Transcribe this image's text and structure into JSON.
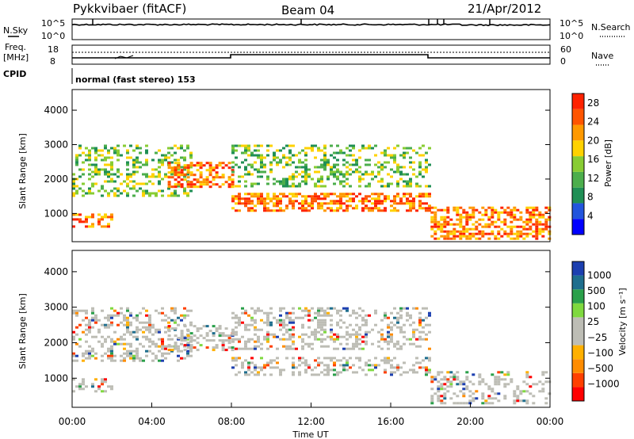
{
  "header": {
    "station": "Pykkvibaer (fitACF)",
    "beam": "Beam 04",
    "date": "21/Apr/2012"
  },
  "top_panels": {
    "nsky_label": "N.Sky",
    "nsearch_label": "N.Search",
    "noise_ticks": [
      "10^5",
      "10^0"
    ],
    "freq_label_1": "Freq.",
    "freq_label_2": "[MHz]",
    "freq_ticks": [
      "18",
      "8"
    ],
    "nave_label": "Nave",
    "nave_ticks": [
      "60",
      "0"
    ],
    "cpid_label": "CPID",
    "cpid_text": "normal (fast stereo) 153"
  },
  "colors": {
    "power_scale": [
      "#0000ff",
      "#2255dd",
      "#1f8f55",
      "#4cae4c",
      "#88cc33",
      "#ffd200",
      "#ff9900",
      "#ff5500",
      "#ff2200"
    ],
    "velocity_scale": [
      "#ff0000",
      "#ff4000",
      "#ff8c00",
      "#ffb000",
      "#bdbdb5",
      "#bdbdb5",
      "#7fd93f",
      "#2aa04a",
      "#1e6e8e",
      "#1c3fb0"
    ],
    "gs_gray": "#bdbdb5"
  },
  "chart_data": [
    {
      "type": "heatmap",
      "parameter": "power",
      "xlabel": "",
      "ylabel": "Slant Range [km]",
      "x_ticks": [
        "00:00",
        "04:00",
        "08:00",
        "12:00",
        "16:00",
        "20:00",
        "00:00"
      ],
      "x_range_hours": [
        0,
        24
      ],
      "y_ticks": [
        1000,
        2000,
        3000,
        4000
      ],
      "ylim": [
        180,
        4600
      ],
      "colorbar": {
        "label": "Power [dB]",
        "ticks": [
          4,
          8,
          12,
          16,
          20,
          24,
          28
        ],
        "range": [
          0,
          30
        ]
      },
      "echo_bands": [
        {
          "start_h": 0.0,
          "end_h": 2.0,
          "range_km": [
            600,
            1000
          ],
          "level": "high"
        },
        {
          "start_h": 0.0,
          "end_h": 6.0,
          "range_km": [
            1500,
            3000
          ],
          "level": "mid"
        },
        {
          "start_h": 4.8,
          "end_h": 8.0,
          "range_km": [
            1800,
            2500
          ],
          "level": "high"
        },
        {
          "start_h": 8.0,
          "end_h": 18.0,
          "range_km": [
            1100,
            1600
          ],
          "level": "high"
        },
        {
          "start_h": 8.0,
          "end_h": 18.0,
          "range_km": [
            1800,
            3000
          ],
          "level": "mid"
        },
        {
          "start_h": 18.0,
          "end_h": 24.0,
          "range_km": [
            300,
            1200
          ],
          "level": "high"
        }
      ]
    },
    {
      "type": "heatmap",
      "parameter": "velocity",
      "xlabel": "Time UT",
      "ylabel": "Slant Range [km]",
      "x_ticks": [
        "00:00",
        "04:00",
        "08:00",
        "12:00",
        "16:00",
        "20:00",
        "00:00"
      ],
      "x_range_hours": [
        0,
        24
      ],
      "y_ticks": [
        1000,
        2000,
        3000,
        4000
      ],
      "ylim": [
        180,
        4600
      ],
      "colorbar": {
        "label": "Velocity [m s⁻¹]",
        "ticks": [
          "1000",
          "500",
          "100",
          "25",
          "−25",
          "−100",
          "−500",
          "−1000"
        ]
      }
    }
  ]
}
